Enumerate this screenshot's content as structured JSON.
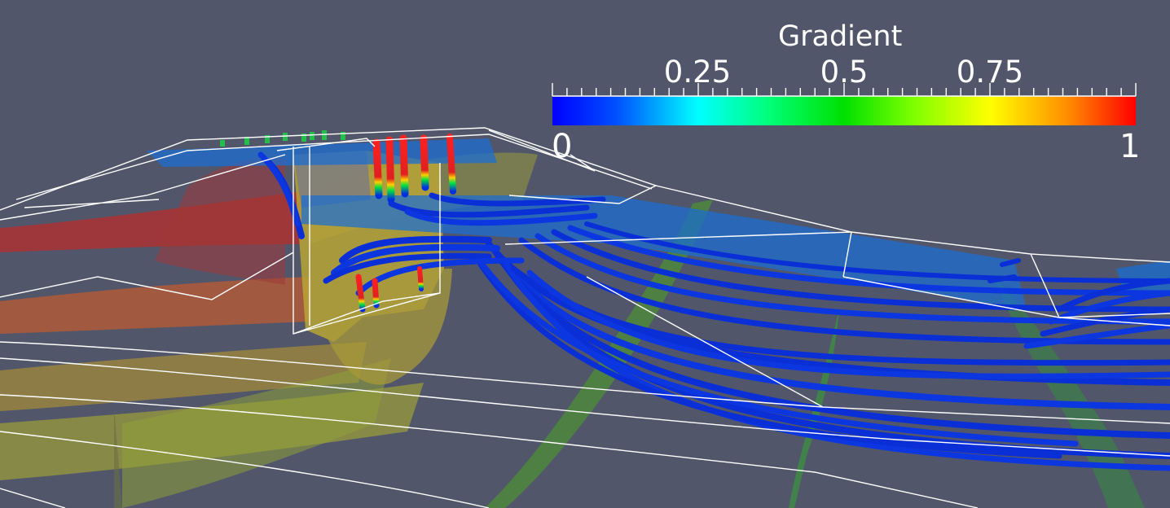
{
  "colorbar": {
    "title": "Gradient",
    "min_label": "0",
    "max_label": "1",
    "tick_labels": [
      "0.25",
      "0.5",
      "0.75"
    ],
    "colormap": [
      "#0000ff",
      "#00b4ff",
      "#00ffff",
      "#00ff88",
      "#00e000",
      "#7fff00",
      "#ffff00",
      "#ffa000",
      "#ff3000",
      "#ff0000"
    ]
  },
  "scene": {
    "background": "#52566b",
    "outline_color": "#ffffff",
    "streamline_color": "#0a2fd6"
  }
}
